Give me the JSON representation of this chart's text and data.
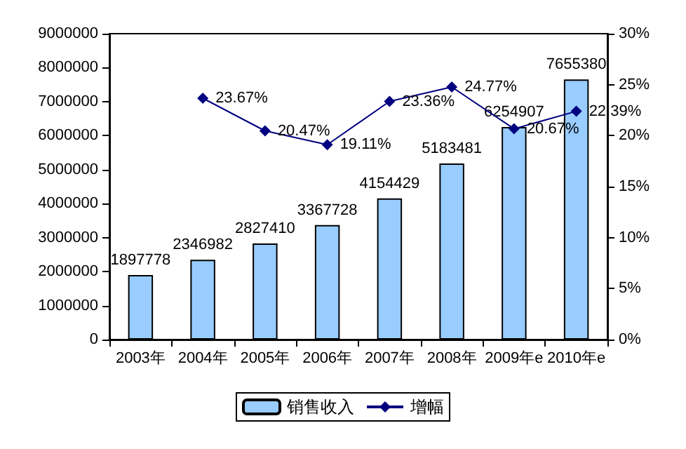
{
  "chart_data": {
    "type": "bar",
    "categories": [
      "2003年",
      "2004年",
      "2005年",
      "2006年",
      "2007年",
      "2008年",
      "2009年e",
      "2010年e"
    ],
    "series": [
      {
        "name": "销售收入",
        "color": "#99ccff",
        "values": [
          1897778,
          2346982,
          2827410,
          3367728,
          4154429,
          5183481,
          6254907,
          7655380
        ],
        "value_labels": [
          "1897778",
          "2346982",
          "2827410",
          "3367728",
          "4154429",
          "5183481",
          "6254907",
          "7655380"
        ]
      },
      {
        "name": "增幅",
        "type": "line",
        "axis": "y2",
        "color": "#000080",
        "marker": "diamond",
        "values": [
          null,
          23.67,
          20.47,
          19.11,
          23.36,
          24.77,
          20.67,
          22.39
        ],
        "value_labels": [
          null,
          "23.67%",
          "20.47%",
          "19.11%",
          "23.36%",
          "24.77%",
          "20.67%",
          "22.39%"
        ]
      }
    ],
    "ylim": [
      0,
      9000000
    ],
    "yticks": [
      0,
      1000000,
      2000000,
      3000000,
      4000000,
      5000000,
      6000000,
      7000000,
      8000000,
      9000000
    ],
    "y2lim": [
      0,
      30
    ],
    "y2ticks": [
      {
        "value": 0,
        "label": "0%"
      },
      {
        "value": 5,
        "label": "5%"
      },
      {
        "value": 10,
        "label": "10%"
      },
      {
        "value": 15,
        "label": "15%"
      },
      {
        "value": 20,
        "label": "20%"
      },
      {
        "value": 25,
        "label": "25%"
      },
      {
        "value": 30,
        "label": "30%"
      }
    ],
    "grid": false,
    "legend": "bottom"
  }
}
